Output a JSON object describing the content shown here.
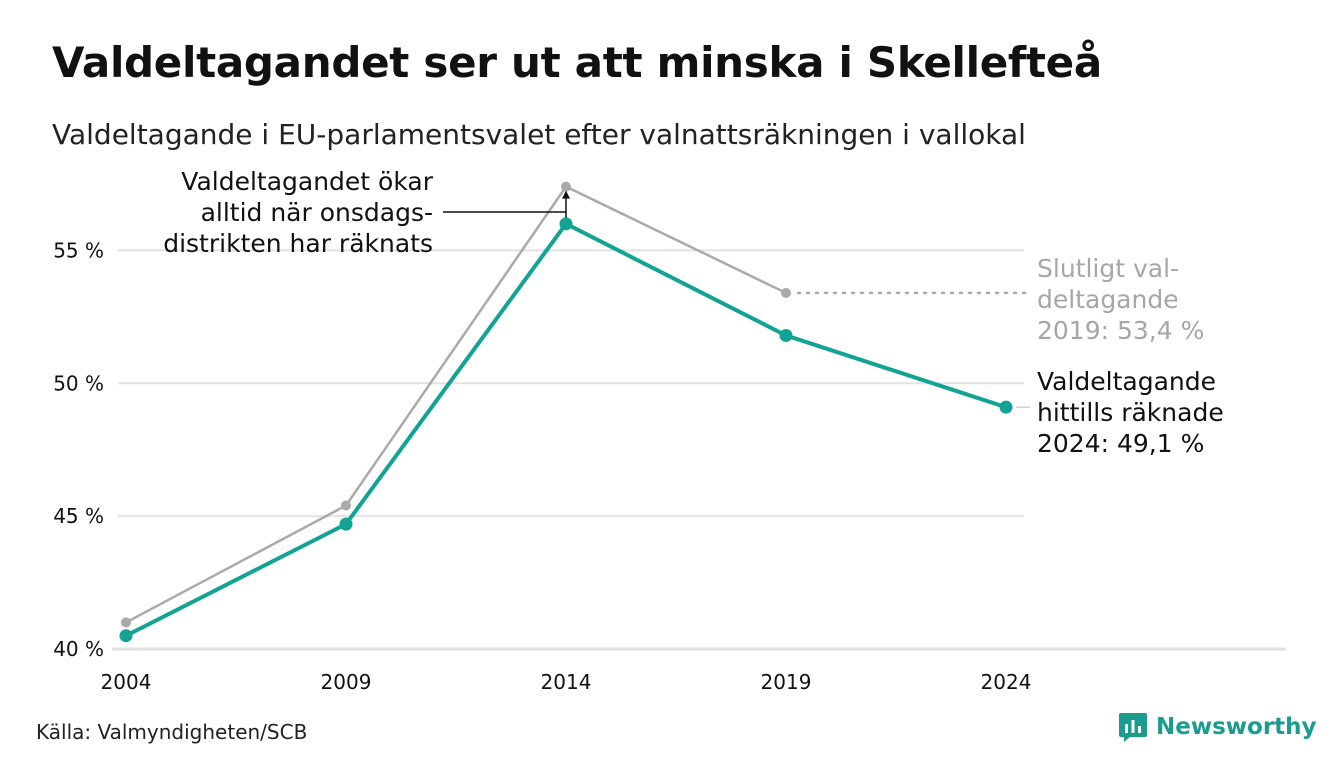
{
  "title": "Valdeltagandet ser ut att minska i Skellefteå",
  "subtitle": "Valdeltagande i EU-parlamentsvalet efter valnattsräkningen i vallokal",
  "source": "Källa: Valmyndigheten/SCB",
  "brand": "Newsworthy",
  "colors": {
    "final": "#aaaaaa",
    "counted": "#12a394",
    "grid": "#e2e2e2"
  },
  "chart_data": {
    "type": "line",
    "x": [
      2004,
      2009,
      2014,
      2019,
      2024
    ],
    "ylim": [
      40,
      57.8
    ],
    "yticks": [
      40,
      45,
      50,
      55
    ],
    "ytick_labels": [
      "40 %",
      "45 %",
      "50 %",
      "55 %"
    ],
    "xtick_labels": [
      "2004",
      "2009",
      "2014",
      "2019",
      "2024"
    ],
    "series": [
      {
        "key": "final",
        "values": [
          41.0,
          45.4,
          57.4,
          53.4,
          null
        ]
      },
      {
        "key": "counted",
        "values": [
          40.5,
          44.7,
          56.0,
          51.8,
          49.1
        ]
      }
    ],
    "annotations": {
      "onsdag": [
        "Valdeltagandet ökar",
        "alltid när onsdags-",
        "distrikten har räknats"
      ],
      "final_2019": [
        "Slutligt val-",
        "deltagande",
        "2019: 53,4 %"
      ],
      "counted_2024": [
        "Valdeltagande",
        "hittills räknade",
        "2024: 49,1 %"
      ]
    }
  }
}
